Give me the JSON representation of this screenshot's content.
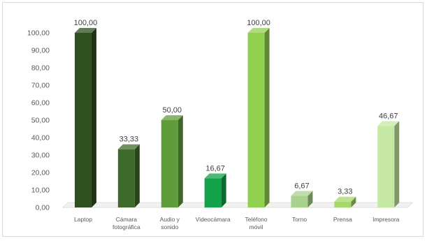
{
  "chart_data": {
    "type": "bar",
    "categories": [
      "Laptop",
      "Cámara fotográfica",
      "Audio y sonido",
      "Videocámara",
      "Teléfono móvil",
      "Torno",
      "Prensa",
      "Impresora"
    ],
    "category_lines": [
      [
        "Laptop"
      ],
      [
        "Cámara",
        "fotográfica"
      ],
      [
        "Audio y",
        "sonido"
      ],
      [
        "Videocámara"
      ],
      [
        "Teléfono",
        "móvil"
      ],
      [
        "Torno"
      ],
      [
        "Prensa"
      ],
      [
        "Impresora"
      ]
    ],
    "values": [
      100.0,
      33.33,
      50.0,
      16.67,
      100.0,
      6.67,
      3.33,
      46.67
    ],
    "data_labels": [
      "100,00",
      "33,33",
      "50,00",
      "16,67",
      "100,00",
      "6,67",
      "3,33",
      "46,67"
    ],
    "y_ticks": [
      "0,00",
      "10,00",
      "20,00",
      "30,00",
      "40,00",
      "50,00",
      "60,00",
      "70,00",
      "80,00",
      "90,00",
      "100,00"
    ],
    "ylim": [
      0,
      100
    ],
    "grid": false,
    "legend": "none",
    "colors": [
      "#2f5020",
      "#3f6b2a",
      "#5f9d3b",
      "#13a24a",
      "#92d050",
      "#a9d18e",
      "#a6d86b",
      "#c5e8a3"
    ],
    "title": "",
    "xlabel": "",
    "ylabel": ""
  }
}
